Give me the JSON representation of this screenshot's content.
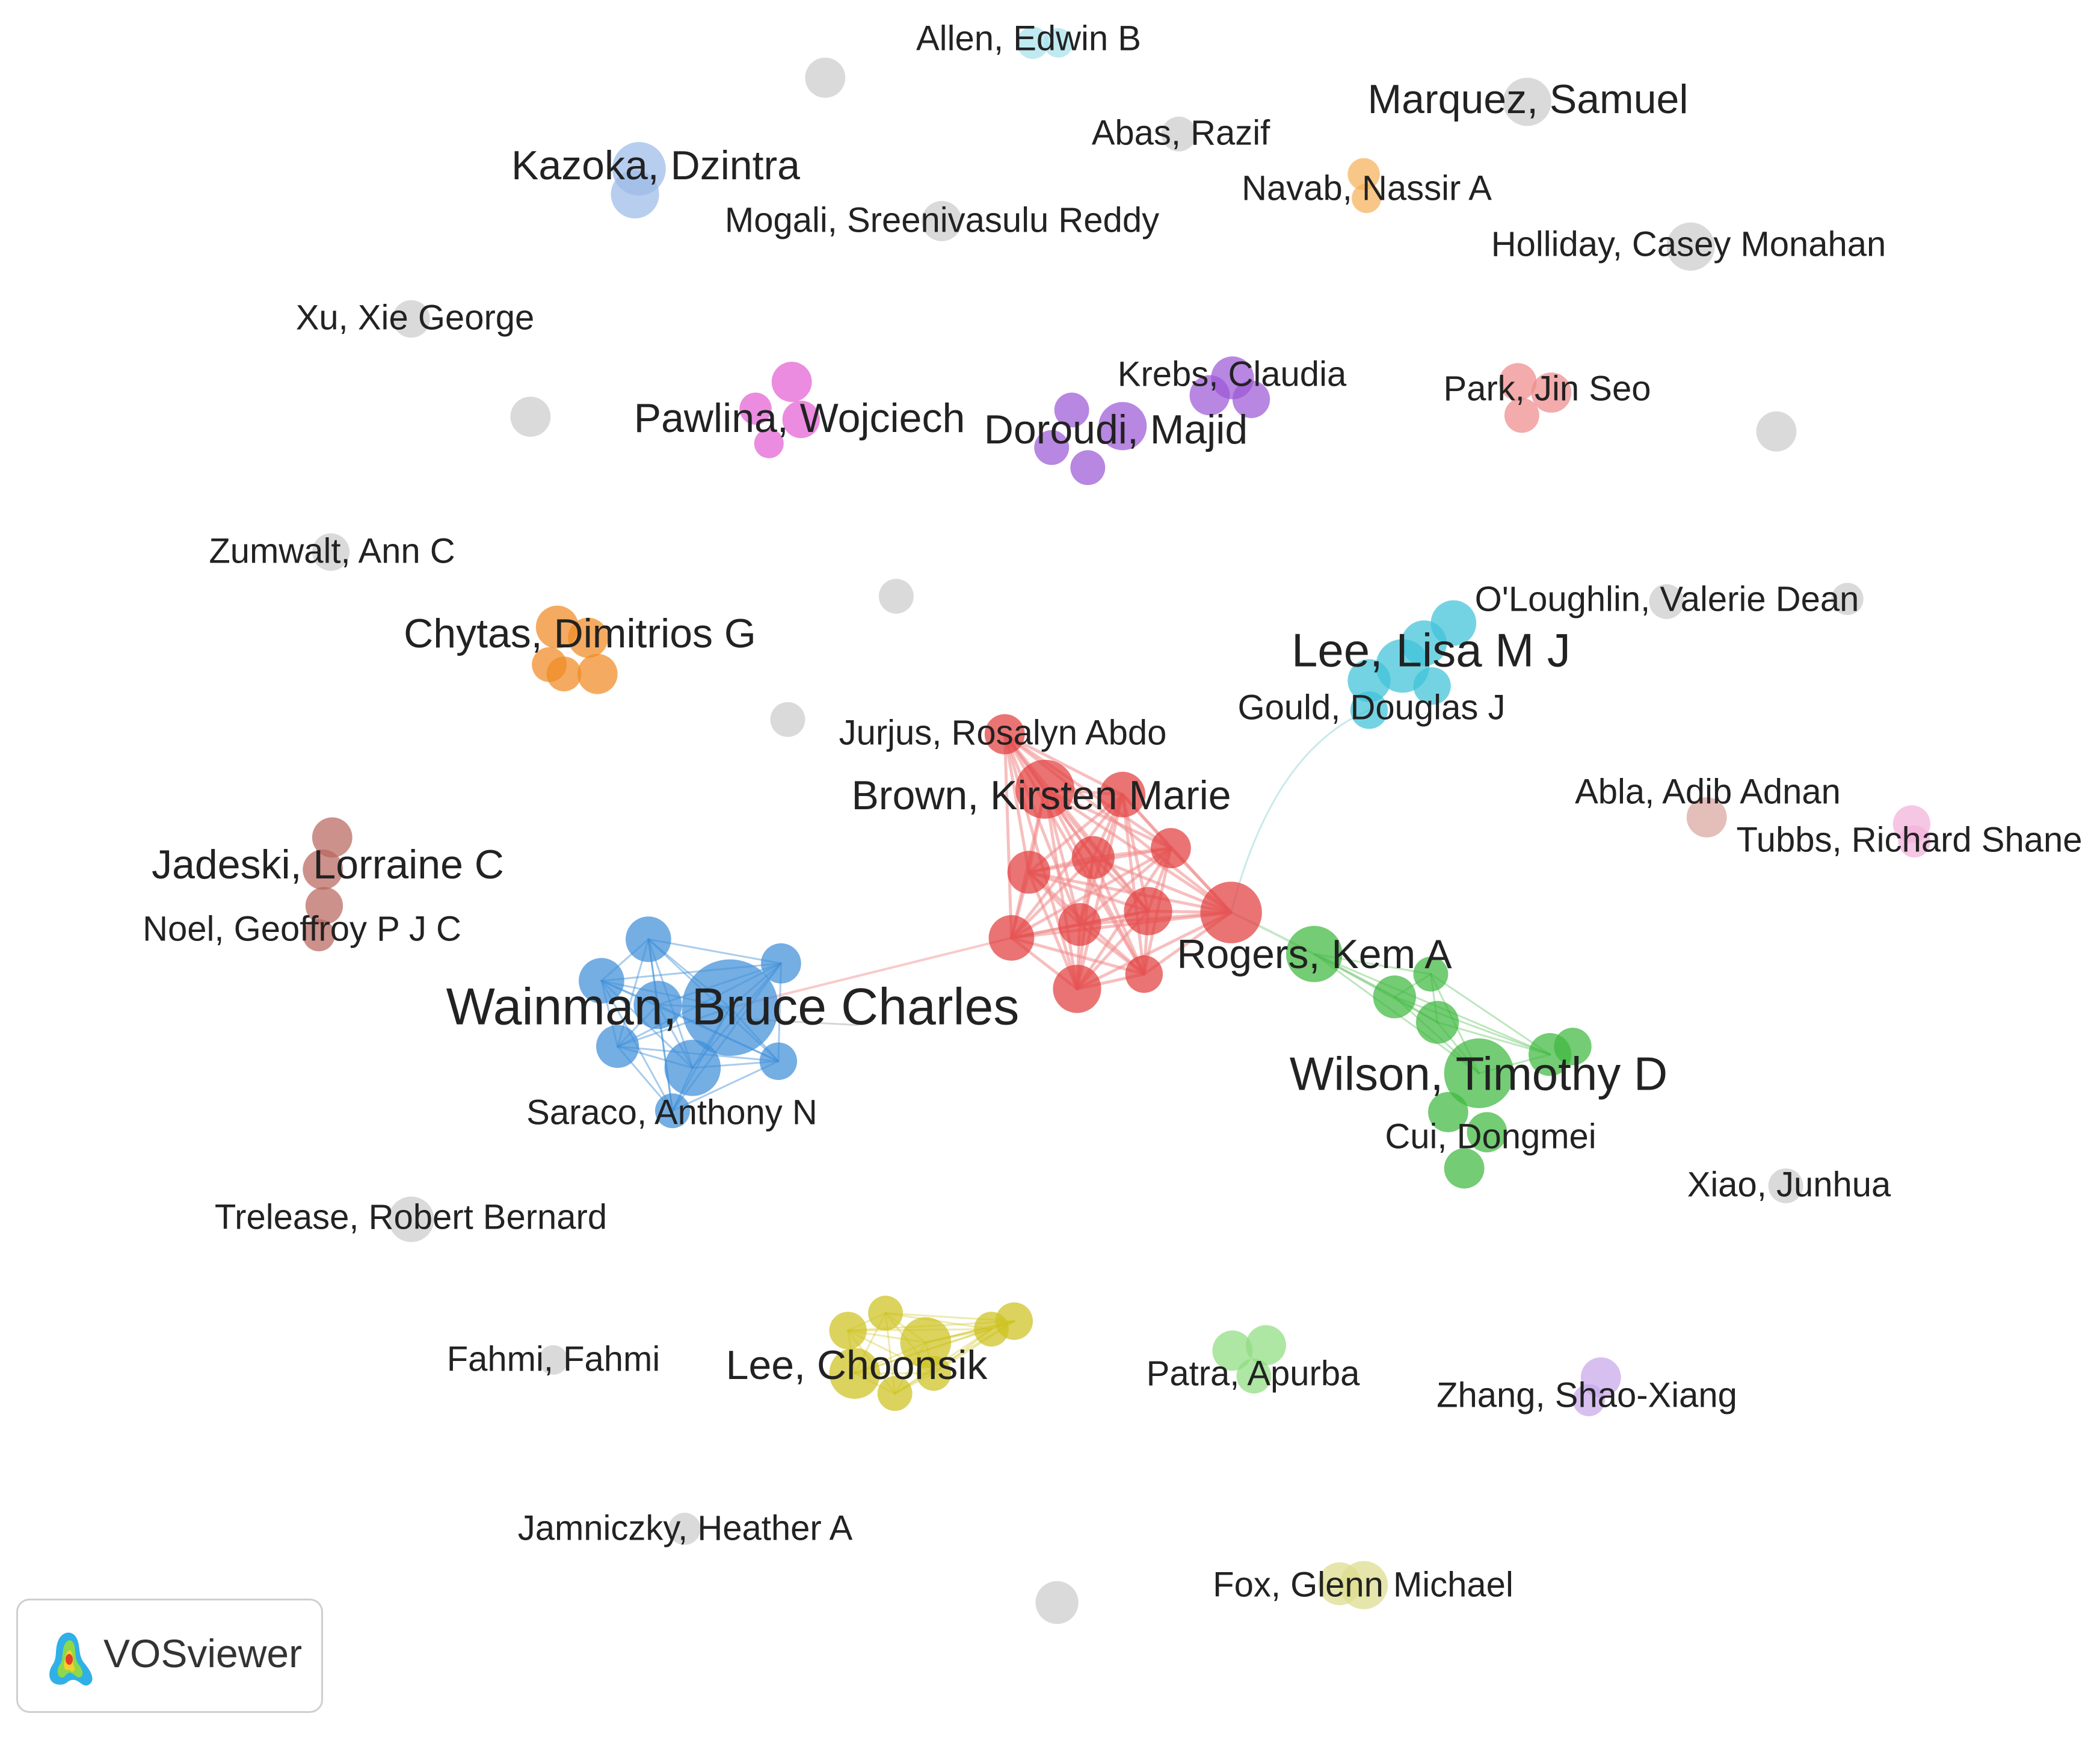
{
  "app": {
    "brand": "VOSviewer",
    "brand_icon": "vosviewer-logo-icon"
  },
  "colors": {
    "red": "#e23f3f",
    "blue": "#3f8fd8",
    "green": "#3fb83f",
    "cyan": "#3fc2d8",
    "orange": "#f08a24",
    "purple": "#9b59d6",
    "pink": "#e35fd4",
    "brown": "#b8675e",
    "yellow": "#cdc21f",
    "light_green": "#8fdc80",
    "salmon": "#ee8a8a",
    "light_blue": "#9dbbe8",
    "light_orange": "#f5b15a",
    "light_cyan": "#a8e2ec",
    "lavender": "#c7a8ea",
    "light_pink": "#f3b2d9",
    "khaki": "#dcdc8c",
    "rosy": "#d9a59d",
    "gray": "#cccccc",
    "edge_red": "#f08a8a"
  },
  "labels": [
    {
      "text": "Allen, Edwin B",
      "size": "small"
    },
    {
      "text": "Marquez, Samuel",
      "size": "medium"
    },
    {
      "text": "Abas, Razif",
      "size": "small"
    },
    {
      "text": "Kazoka, Dzintra",
      "size": "medium"
    },
    {
      "text": "Navab, Nassir A",
      "size": "small"
    },
    {
      "text": "Mogali, Sreenivasulu Reddy",
      "size": "small"
    },
    {
      "text": "Holliday, Casey Monahan",
      "size": "small"
    },
    {
      "text": "Xu, Xie George",
      "size": "small"
    },
    {
      "text": "Krebs, Claudia",
      "size": "small"
    },
    {
      "text": "Park, Jin Seo",
      "size": "small"
    },
    {
      "text": "Pawlina, Wojciech",
      "size": "medium"
    },
    {
      "text": "Doroudi, Majid",
      "size": "medium"
    },
    {
      "text": "Zumwalt, Ann C",
      "size": "small"
    },
    {
      "text": "O'Loughlin, Valerie Dean",
      "size": "small"
    },
    {
      "text": "Chytas, Dimitrios G",
      "size": "medium"
    },
    {
      "text": "Lee, Lisa M J",
      "size": "large"
    },
    {
      "text": "Gould, Douglas J",
      "size": "small"
    },
    {
      "text": "Jurjus, Rosalyn Abdo",
      "size": "small"
    },
    {
      "text": "Brown, Kirsten Marie",
      "size": "medium"
    },
    {
      "text": "Abla, Adib Adnan",
      "size": "small"
    },
    {
      "text": "Tubbs, Richard Shane",
      "size": "small"
    },
    {
      "text": "Jadeski, Lorraine C",
      "size": "medium"
    },
    {
      "text": "Noel, Geoffroy P J C",
      "size": "small"
    },
    {
      "text": "Rogers, Kem A",
      "size": "medium"
    },
    {
      "text": "Wainman, Bruce Charles",
      "size": "xlarge"
    },
    {
      "text": "Wilson, Timothy D",
      "size": "large"
    },
    {
      "text": "Saraco, Anthony N",
      "size": "small"
    },
    {
      "text": "Cui, Dongmei",
      "size": "small"
    },
    {
      "text": "Xiao, Junhua",
      "size": "small"
    },
    {
      "text": "Trelease, Robert Bernard",
      "size": "small"
    },
    {
      "text": "Fahmi, Fahmi",
      "size": "small"
    },
    {
      "text": "Lee, Choonsik",
      "size": "medium"
    },
    {
      "text": "Patra, Apurba",
      "size": "small"
    },
    {
      "text": "Zhang, Shao-Xiang",
      "size": "small"
    },
    {
      "text": "Jamniczky, Heather A",
      "size": "small"
    },
    {
      "text": "Fox, Glenn Michael",
      "size": "small"
    }
  ]
}
